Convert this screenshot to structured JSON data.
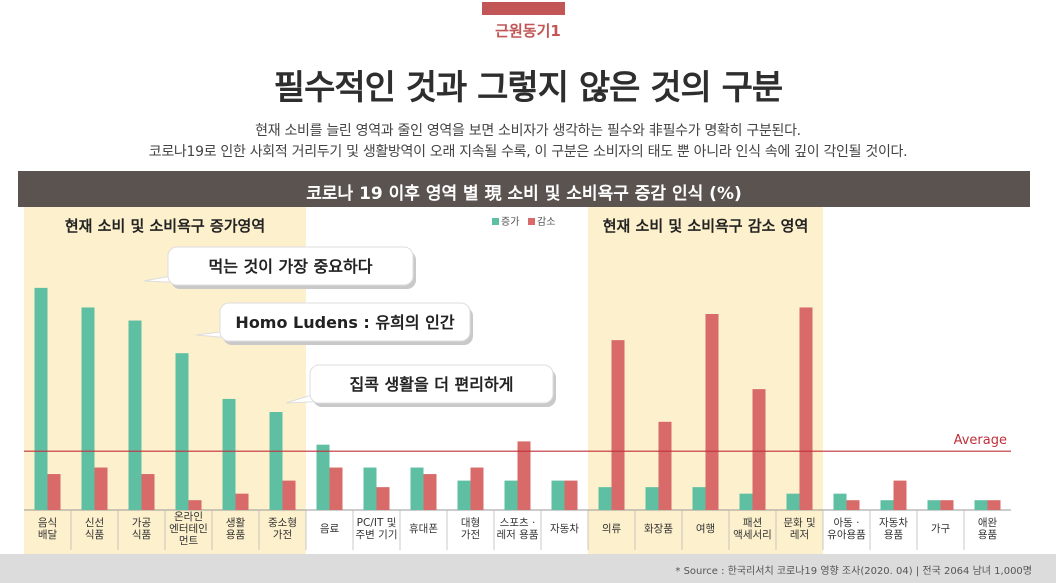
{
  "header": {
    "tag": "근원동기1",
    "title": "필수적인 것과 그렇지 않은 것의 구분",
    "subtitle_line1": "현재 소비를 늘린 영역과 줄인 영역을 보면 소비자가 생각하는 필수와 非필수가 명확히 구분된다.",
    "subtitle_line2": "코로나19로 인한 사회적 거리두기 및 생활방역이 오래 지속될 수록, 이 구분은 소비자의 태도 뿐 아니라 인식 속에 깊이 각인될 것이다.",
    "banner": "코로나 19 이후 영역 별 現 소비 및 소비욕구 증감 인식 (%)"
  },
  "colors": {
    "increase": "#5fbfa3",
    "decrease": "#d96a6a",
    "highlight_bg": "#fdf0cc",
    "average_line": "#c0303a",
    "tag": "#c25555",
    "banner_bg": "#5a534f"
  },
  "chart_data": {
    "type": "bar",
    "title": "코로나 19 이후 영역 별 現 소비 및 소비욕구 증감 인식 (%)",
    "categories": [
      "음식\n배달",
      "신선\n식품",
      "가공\n식품",
      "온라인\n엔터테인\n먼트",
      "생활\n용품",
      "중소형\n가전",
      "음료",
      "PC/IT 및\n주변 기기",
      "휴대폰",
      "대형\n가전",
      "스포츠 ·\n레저 용품",
      "자동차",
      "의류",
      "화장품",
      "여행",
      "패션\n액세서리",
      "문화 및\n레저",
      "아동 ·\n유아용품",
      "자동차\n용품",
      "가구",
      "애완\n용품"
    ],
    "series": [
      {
        "name": "증가",
        "values": [
          68,
          62,
          58,
          48,
          34,
          30,
          20,
          13,
          13,
          9,
          9,
          9,
          7,
          7,
          7,
          5,
          5,
          5,
          3,
          3,
          3
        ]
      },
      {
        "name": "감소",
        "values": [
          11,
          13,
          11,
          3,
          5,
          9,
          13,
          7,
          11,
          13,
          21,
          9,
          52,
          27,
          60,
          37,
          62,
          3,
          9,
          3,
          3
        ]
      }
    ],
    "average": 18,
    "average_label": "Average",
    "ylim": [
      0,
      75
    ],
    "legend": [
      "증가",
      "감소"
    ],
    "legend_position": "top",
    "regions": [
      {
        "label": "현재 소비 및 소비욕구 증가영역",
        "from": 0,
        "to": 5
      },
      {
        "label": "현재 소비 및 소비욕구 감소 영역",
        "from": 12,
        "to": 16
      }
    ],
    "callouts": [
      "먹는 것이 가장 중요하다",
      "Homo Ludens : 유희의 인간",
      "집콕 생활을 더 편리하게"
    ]
  },
  "footer": {
    "source": "* Source : 한국리서치 코로나19 영향 조사(2020. 04) | 전국 2064 남녀 1,000명"
  }
}
